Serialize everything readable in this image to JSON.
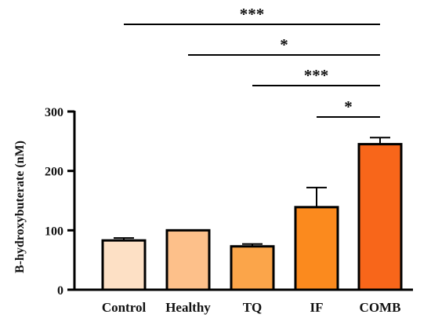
{
  "chart_data": {
    "type": "bar",
    "title": "",
    "xlabel": "",
    "ylabel": "B-hydroxybuterate (nM)",
    "ylim": [
      0,
      300
    ],
    "yticks": [
      "0",
      "100",
      "200",
      "300"
    ],
    "categories": [
      "Control",
      "Healthy",
      "TQ",
      "IF",
      "COMB"
    ],
    "values": [
      83,
      100,
      73,
      139,
      245
    ],
    "error": [
      4,
      0,
      4,
      33,
      11
    ],
    "colors": [
      "#FDE0C5",
      "#FDC08A",
      "#FBA54A",
      "#FB8A1E",
      "#F8661A"
    ],
    "grid": false,
    "significance": [
      {
        "from": "Control",
        "to": "COMB",
        "label": "***"
      },
      {
        "from": "Healthy",
        "to": "COMB",
        "label": "*"
      },
      {
        "from": "TQ",
        "to": "COMB",
        "label": "***"
      },
      {
        "from": "IF",
        "to": "COMB",
        "label": "*"
      }
    ]
  }
}
